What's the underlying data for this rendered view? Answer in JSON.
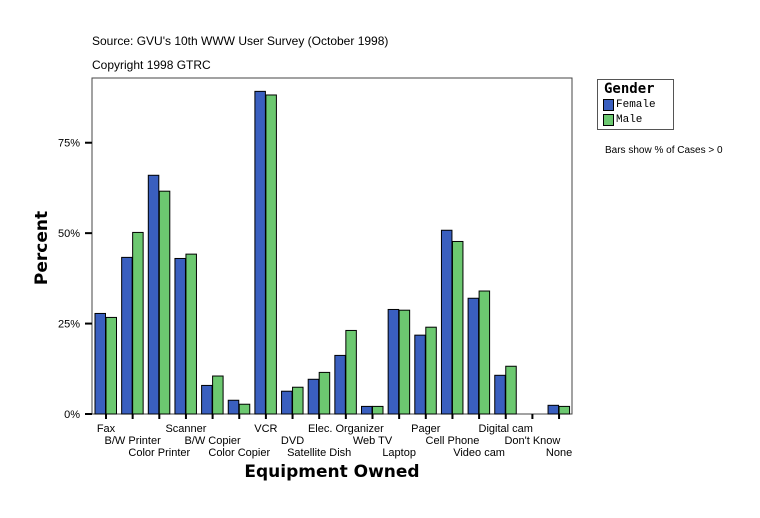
{
  "chart_data": {
    "type": "bar",
    "source": "Source: GVU's 10th WWW User Survey (October 1998)",
    "copyright": "Copyright 1998 GTRC",
    "xlabel": "Equipment Owned",
    "ylabel": "Percent",
    "ylim": [
      0,
      93
    ],
    "yticks": [
      {
        "v": 0,
        "label": "0%"
      },
      {
        "v": 25,
        "label": "25%"
      },
      {
        "v": 50,
        "label": "50%"
      },
      {
        "v": 75,
        "label": "75%"
      }
    ],
    "grid": false,
    "categories": [
      "Fax",
      "B/W Printer",
      "Color Printer",
      "Scanner",
      "B/W Copier",
      "Color Copier",
      "VCR",
      "DVD",
      "Satellite Dish",
      "Elec. Organizer",
      "Web TV",
      "Laptop",
      "Pager",
      "Cell Phone",
      "Video cam",
      "Digital cam",
      "Don't Know",
      "None"
    ],
    "series": [
      {
        "name": "Female",
        "color": "#3a5fbf",
        "values": [
          27.8,
          43.3,
          66.0,
          43.0,
          7.9,
          3.8,
          89.2,
          6.3,
          9.6,
          16.2,
          2.1,
          28.9,
          21.8,
          50.8,
          32.0,
          10.7,
          0,
          2.4
        ]
      },
      {
        "name": "Male",
        "color": "#6cc870",
        "values": [
          26.7,
          50.2,
          61.6,
          44.2,
          10.5,
          2.7,
          88.2,
          7.4,
          11.5,
          23.1,
          2.1,
          28.7,
          24.0,
          47.7,
          34.0,
          13.2,
          0,
          2.1
        ]
      }
    ],
    "legend": {
      "title": "Gender",
      "placement": "top-right"
    },
    "note": "Bars show % of Cases > 0"
  }
}
